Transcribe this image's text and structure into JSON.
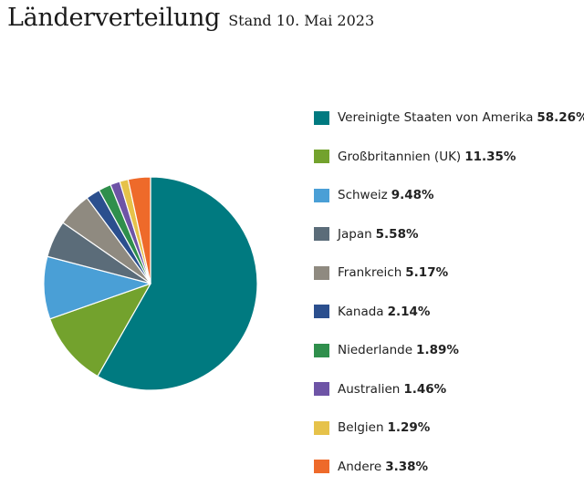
{
  "header": {
    "title": "Länderverteilung",
    "subtitle": "Stand 10. Mai 2023"
  },
  "colors": {
    "background": "#ffffff",
    "slice_border": "#ffffff"
  },
  "chart_data": {
    "type": "pie",
    "title": "Länderverteilung",
    "subtitle": "Stand 10. Mai 2023",
    "legend_position": "right",
    "slices": [
      {
        "label": "Vereinigte Staaten von Amerika",
        "value": 58.26,
        "display": "58.26%",
        "color": "#007a80"
      },
      {
        "label": "Großbritannien (UK)",
        "value": 11.35,
        "display": "11.35%",
        "color": "#73a22d"
      },
      {
        "label": "Schweiz",
        "value": 9.48,
        "display": "9.48%",
        "color": "#4a9fd6"
      },
      {
        "label": "Japan",
        "value": 5.58,
        "display": "5.58%",
        "color": "#5b6c79"
      },
      {
        "label": "Frankreich",
        "value": 5.17,
        "display": "5.17%",
        "color": "#8f8a80"
      },
      {
        "label": "Kanada",
        "value": 2.14,
        "display": "2.14%",
        "color": "#2b4f8e"
      },
      {
        "label": "Niederlande",
        "value": 1.89,
        "display": "1.89%",
        "color": "#2f8f4c"
      },
      {
        "label": "Australien",
        "value": 1.46,
        "display": "1.46%",
        "color": "#6e54a6"
      },
      {
        "label": "Belgien",
        "value": 1.29,
        "display": "1.29%",
        "color": "#e6c24a"
      },
      {
        "label": "Andere",
        "value": 3.38,
        "display": "3.38%",
        "color": "#ee6a2a"
      }
    ]
  }
}
